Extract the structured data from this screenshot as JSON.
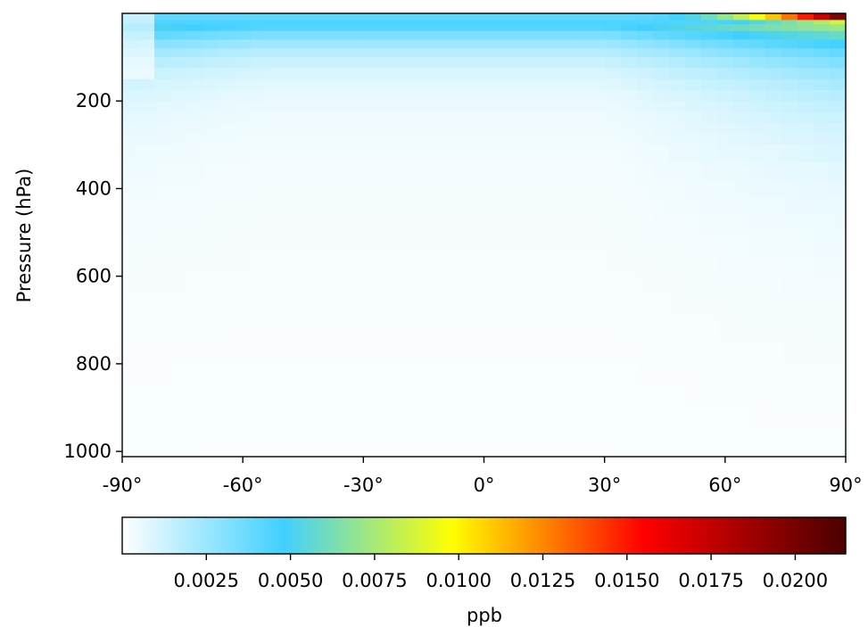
{
  "chart_data": {
    "type": "heatmap",
    "title": "",
    "xlabel": "",
    "ylabel": "Pressure (hPa)",
    "x_ticks": [
      "-90°",
      "-60°",
      "-30°",
      "0°",
      "30°",
      "60°",
      "90°"
    ],
    "x_tick_values": [
      -90,
      -60,
      -30,
      0,
      30,
      60,
      90
    ],
    "xlim": [
      -90,
      90
    ],
    "y_ticks": [
      "200",
      "400",
      "600",
      "800",
      "1000"
    ],
    "y_tick_values": [
      200,
      400,
      600,
      800,
      1000
    ],
    "ylim": [
      1012,
      0
    ],
    "grid": false,
    "colorbar": {
      "label": "ppb",
      "min": 0,
      "max": 0.0215,
      "ticks": [
        "0.0025",
        "0.0050",
        "0.0075",
        "0.0100",
        "0.0125",
        "0.0150",
        "0.0175",
        "0.0200"
      ],
      "tick_values": [
        0.0025,
        0.005,
        0.0075,
        0.01,
        0.0125,
        0.015,
        0.0175,
        0.02
      ],
      "colormap": [
        {
          "v": 0.0,
          "color": "#ffffff"
        },
        {
          "v": 0.0048,
          "color": "#40d0ff"
        },
        {
          "v": 0.0098,
          "color": "#ffff00"
        },
        {
          "v": 0.0155,
          "color": "#ff0000"
        },
        {
          "v": 0.0215,
          "color": "#4a0000"
        }
      ]
    },
    "levels_hPa": [
      10,
      20,
      30,
      50,
      70,
      100,
      150,
      200,
      250,
      300,
      400,
      500,
      600,
      700,
      800,
      900,
      1000
    ],
    "field_summary": {
      "description_values_ppb": {
        "top_level_max_north": 0.021,
        "upper_band_typical": 0.0045,
        "lower_troposphere_typical": 0.0002
      }
    }
  }
}
